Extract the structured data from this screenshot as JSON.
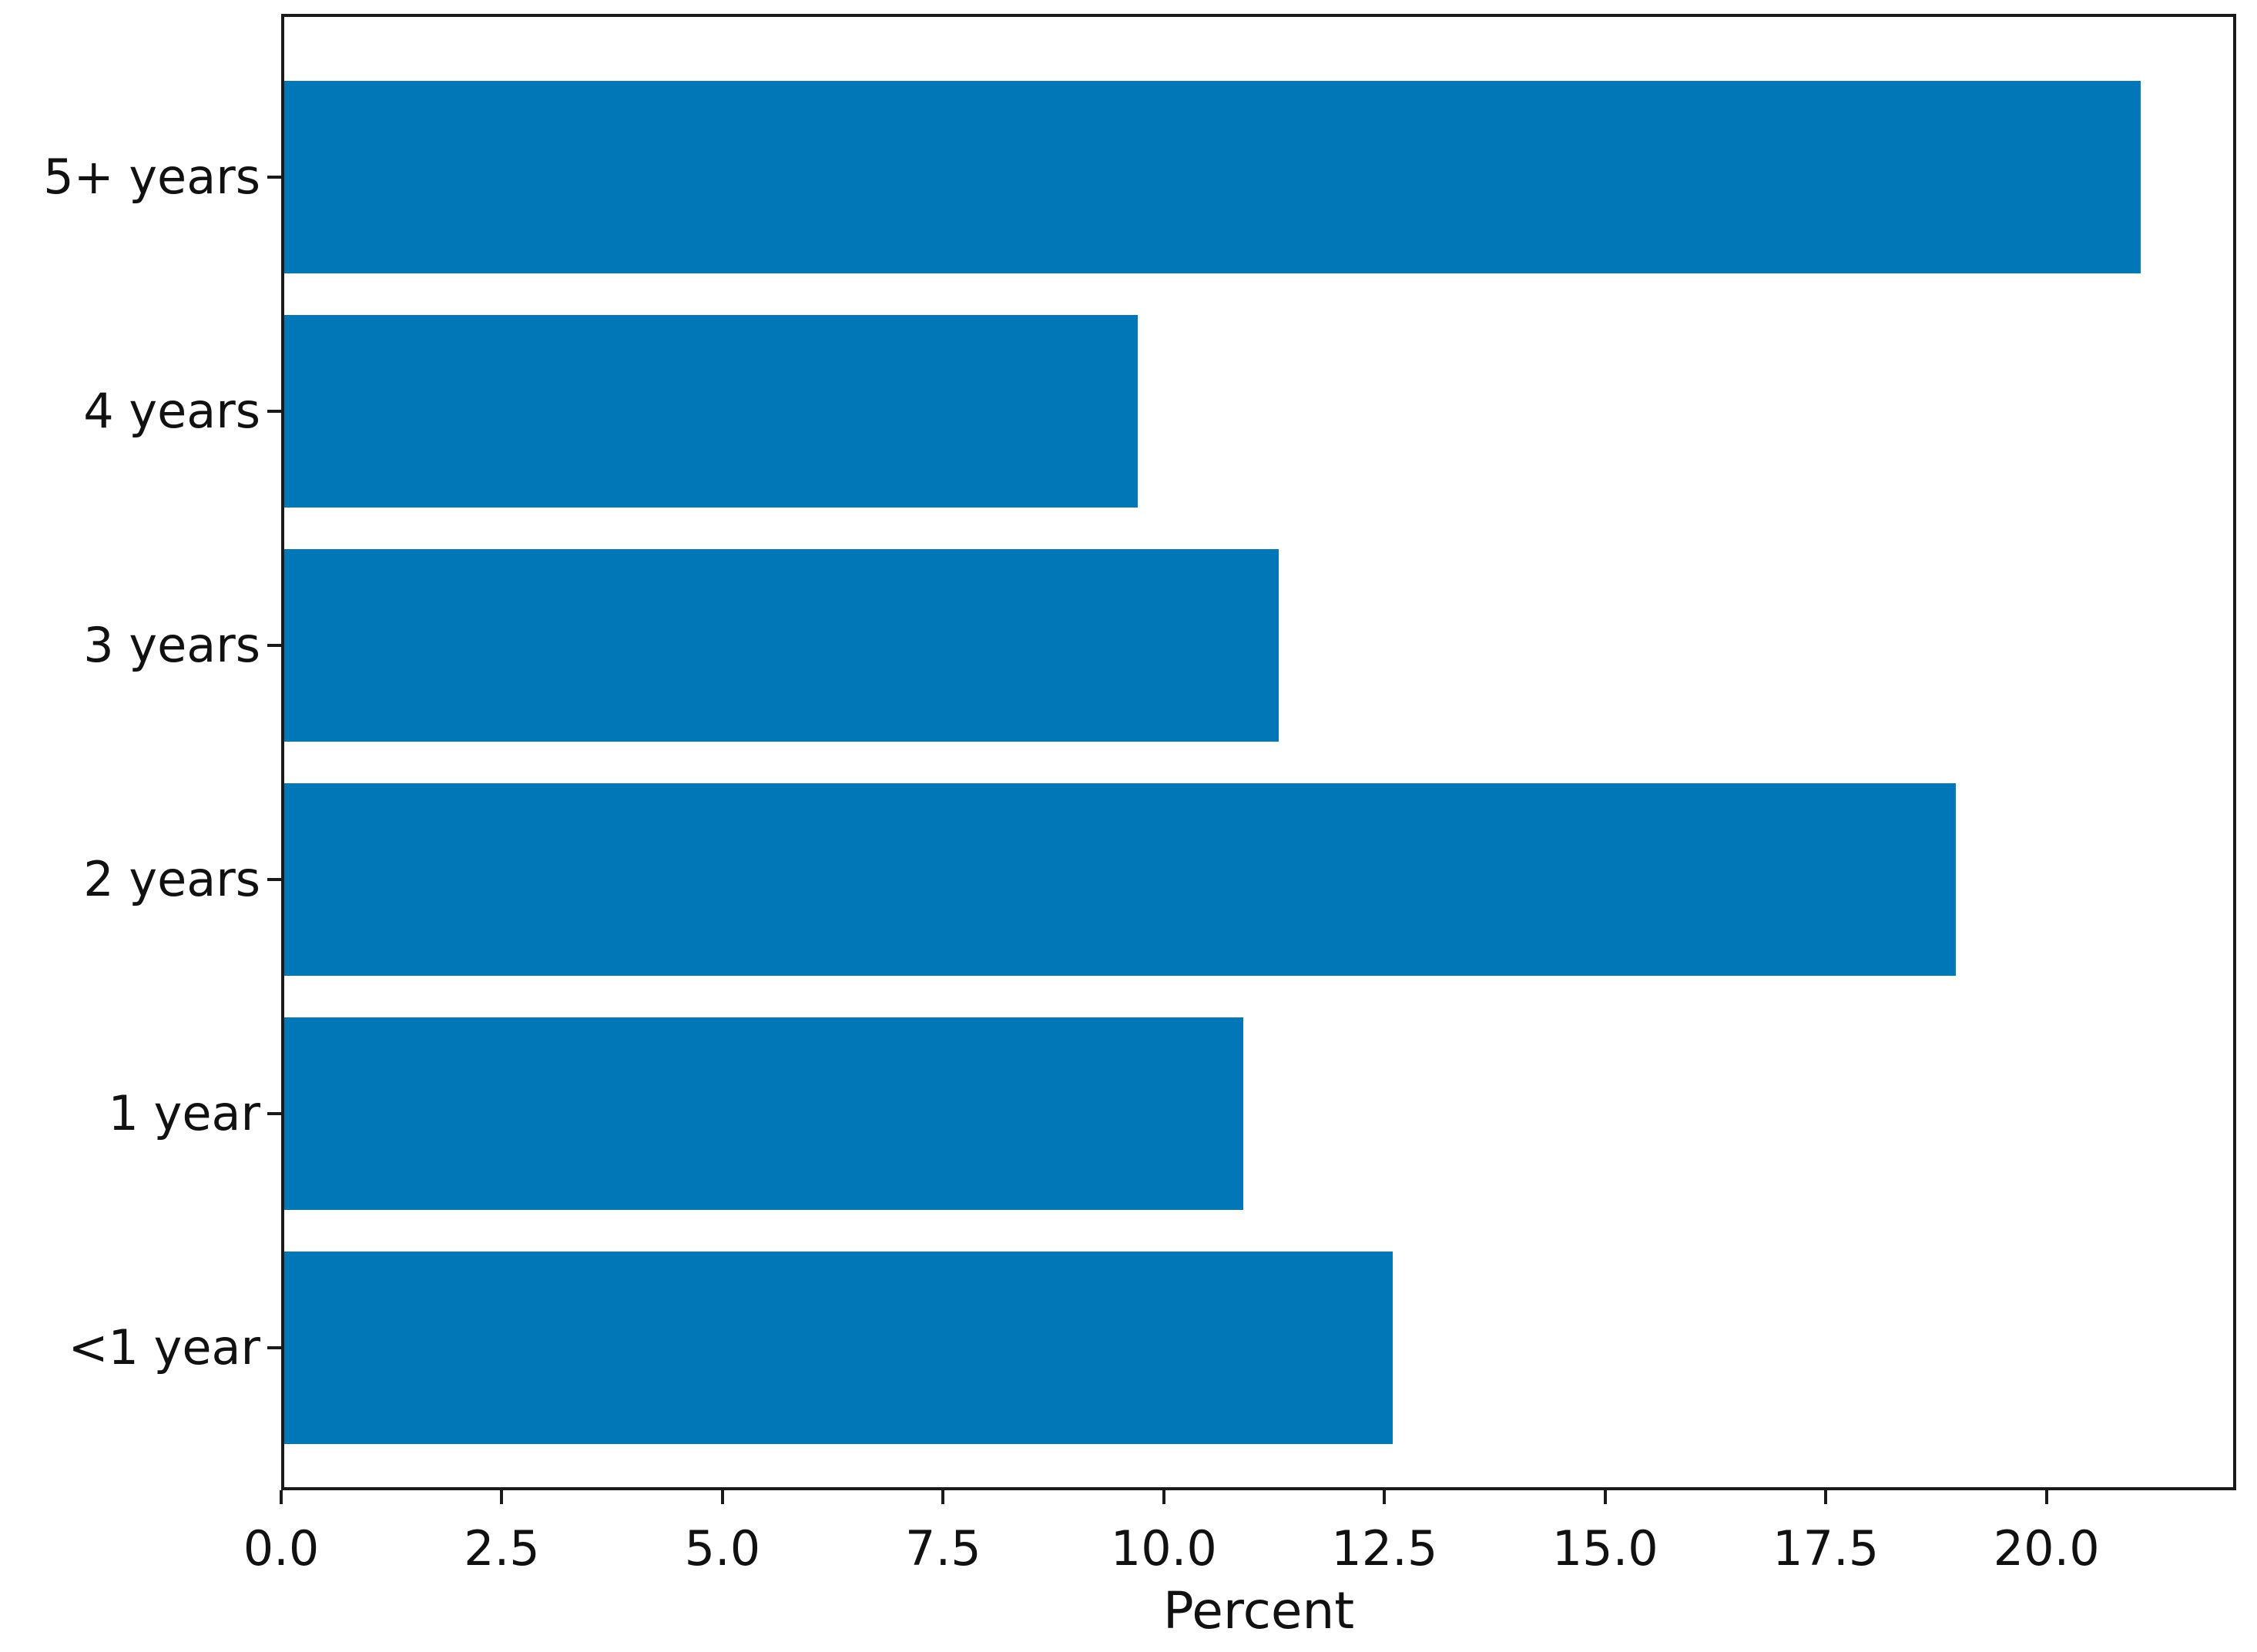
{
  "chart_data": {
    "type": "bar",
    "orientation": "horizontal",
    "title": "",
    "xlabel": "Percent",
    "ylabel": "",
    "categories": [
      "5+ years",
      "4 years",
      "3 years",
      "2 years",
      "1 year",
      "<1 year"
    ],
    "values": [
      21.1,
      9.7,
      11.3,
      19.0,
      10.9,
      12.6
    ],
    "xticks": [
      0.0,
      2.5,
      5.0,
      7.5,
      10.0,
      12.5,
      15.0,
      17.5,
      20.0
    ],
    "xtick_labels": [
      "0.0",
      "2.5",
      "5.0",
      "7.5",
      "10.0",
      "12.5",
      "15.0",
      "17.5",
      "20.0"
    ],
    "xlim": [
      0,
      22.15
    ],
    "grid": false,
    "legend": null,
    "bar_color": "#0277b8",
    "spine_color": "#1a1a1a",
    "text_color": "#111111"
  }
}
